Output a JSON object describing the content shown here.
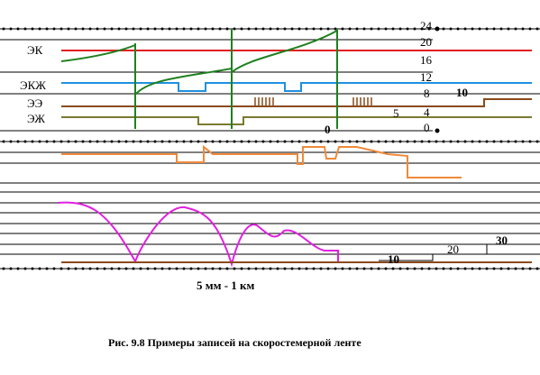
{
  "tracks": [
    {
      "label": "ЭК"
    },
    {
      "label": "ЭКЖ"
    },
    {
      "label": "ЭЭ"
    },
    {
      "label": "ЭЖ"
    }
  ],
  "scale": [
    "24",
    "20",
    "16",
    "12",
    "8",
    "4",
    "0"
  ],
  "marks": {
    "top_ten": "10",
    "five": "5",
    "zero": "0",
    "bottom": [
      "10",
      "20",
      "30"
    ]
  },
  "scale_note": "5 мм - 1 км",
  "caption": "Рис.  9.8  Примеры записей на скоростемерной ленте"
}
